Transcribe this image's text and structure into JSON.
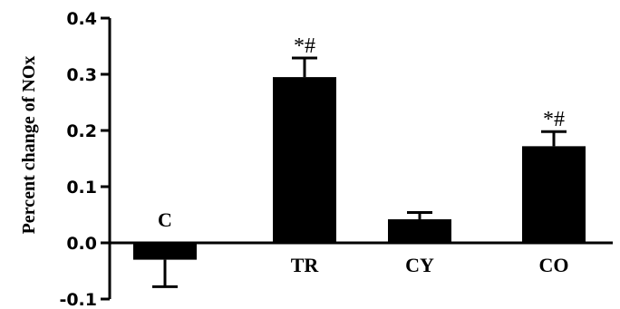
{
  "chart_data": {
    "type": "bar",
    "ylabel": "Percent change of NOx",
    "ylim": [
      -0.1,
      0.4
    ],
    "yticks": [
      "-0.1",
      "0.0",
      "0.1",
      "0.2",
      "0.3",
      "0.4"
    ],
    "categories": [
      "C",
      "TR",
      "CY",
      "CO"
    ],
    "values": [
      -0.03,
      0.295,
      0.042,
      0.172
    ],
    "errors": [
      0.048,
      0.034,
      0.012,
      0.026
    ],
    "annotations": [
      "",
      "*#",
      "",
      "*#"
    ],
    "bar_color": "#000000",
    "grid": false
  }
}
